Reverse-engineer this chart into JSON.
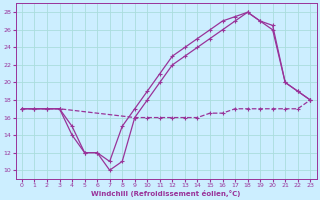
{
  "xlabel": "Windchill (Refroidissement éolien,°C)",
  "bg_color": "#cceeff",
  "line_color": "#993399",
  "grid_color": "#aadddd",
  "xlim": [
    -0.5,
    23.5
  ],
  "ylim": [
    9,
    29
  ],
  "xticks": [
    0,
    1,
    2,
    3,
    4,
    5,
    6,
    7,
    8,
    9,
    10,
    11,
    12,
    13,
    14,
    15,
    16,
    17,
    18,
    19,
    20,
    21,
    22,
    23
  ],
  "yticks": [
    10,
    12,
    14,
    16,
    18,
    20,
    22,
    24,
    26,
    28
  ],
  "line1_x": [
    0,
    1,
    2,
    3,
    4,
    5,
    6,
    7,
    8,
    9,
    10,
    11,
    12,
    13,
    14,
    15,
    16,
    17,
    18,
    19,
    20,
    21,
    22,
    23
  ],
  "line1_y": [
    17,
    17,
    17,
    17,
    15,
    12,
    12,
    11,
    15,
    17,
    19,
    21,
    23,
    24,
    25,
    26,
    27,
    27.5,
    28,
    27,
    26,
    20,
    19,
    18
  ],
  "line2_x": [
    0,
    1,
    2,
    3,
    4,
    5,
    6,
    7,
    8,
    9,
    10,
    11,
    12,
    13,
    14,
    15,
    16,
    17,
    18,
    19,
    20,
    21,
    22,
    23
  ],
  "line2_y": [
    17,
    17,
    17,
    17,
    14,
    12,
    12,
    10,
    11,
    16,
    18,
    20,
    22,
    23,
    24,
    25,
    26,
    27,
    28,
    27,
    26.5,
    20,
    19,
    18
  ],
  "line3_x": [
    0,
    3,
    9,
    10,
    11,
    12,
    13,
    14,
    15,
    16,
    17,
    18,
    19,
    20,
    21,
    22,
    23
  ],
  "line3_y": [
    17,
    17,
    16,
    16,
    16,
    16,
    16,
    16,
    16.5,
    16.5,
    17,
    17,
    17,
    17,
    17,
    17,
    18
  ]
}
